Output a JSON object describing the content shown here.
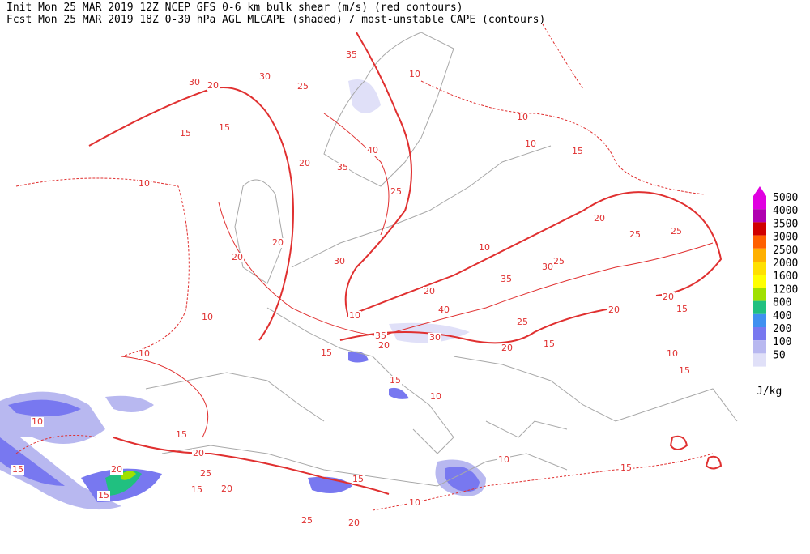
{
  "header": {
    "line1": "Init  Mon 25 MAR 2019 12Z  NCEP GFS 0-6 km bulk shear (m/s) (red contours)",
    "line2": "Fcst Mon 25 MAR 2019 18Z  0-30 hPa AGL MLCAPE (shaded) / most-unstable CAPE (contours)"
  },
  "legend": {
    "items": [
      {
        "label": "5000",
        "color": "#e000e0"
      },
      {
        "label": "4000",
        "color": "#b000b0"
      },
      {
        "label": "3500",
        "color": "#d00000"
      },
      {
        "label": "3000",
        "color": "#ff6000"
      },
      {
        "label": "2500",
        "color": "#ffb000"
      },
      {
        "label": "2000",
        "color": "#ffe000"
      },
      {
        "label": "1600",
        "color": "#ffff00"
      },
      {
        "label": "1200",
        "color": "#a0e000"
      },
      {
        "label": "800",
        "color": "#20c080"
      },
      {
        "label": "400",
        "color": "#4090f0"
      },
      {
        "label": "200",
        "color": "#7878f0"
      },
      {
        "label": "100",
        "color": "#b8b8f0"
      },
      {
        "label": "50",
        "color": "#e0e0f8"
      }
    ],
    "unit": "J/kg"
  },
  "contour_labels": [
    "35",
    "30",
    "30",
    "20",
    "25",
    "10",
    "15",
    "15",
    "10",
    "10",
    "10",
    "15",
    "40",
    "35",
    "20",
    "25",
    "20",
    "25",
    "25",
    "10",
    "20",
    "20",
    "30",
    "25",
    "30",
    "35",
    "20",
    "20",
    "15",
    "40",
    "20",
    "10",
    "10",
    "25",
    "35",
    "20",
    "30",
    "20",
    "15",
    "15",
    "10",
    "10",
    "15",
    "10",
    "10",
    "15",
    "15",
    "20",
    "25",
    "20",
    "15",
    "20",
    "15",
    "15",
    "10",
    "10",
    "15",
    "25",
    "20",
    "15"
  ]
}
